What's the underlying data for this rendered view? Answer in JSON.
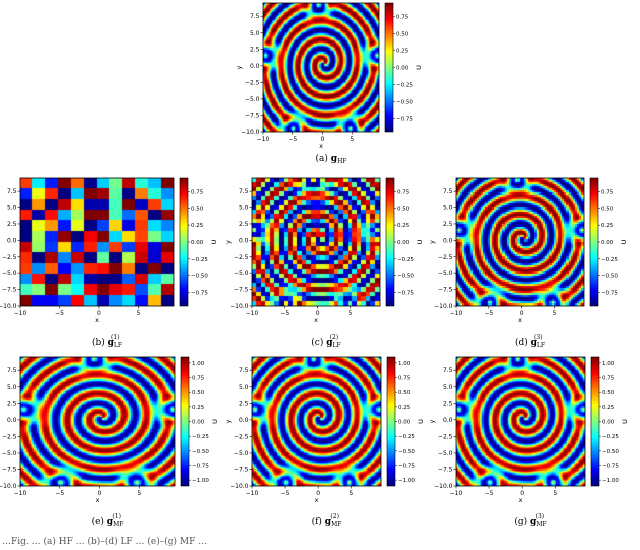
{
  "figure_footnote": "…Fig. … (a) HF … (b)–(d) LF … (e)–(g) MF …",
  "chart_data": [
    {
      "type": "heatmap",
      "panel": "a",
      "caption": "(a)",
      "caption_math": "g",
      "caption_sub": "HF",
      "caption_sup": "",
      "xlabel": "x",
      "ylabel": "y",
      "colorbar_label": "U",
      "xlim": [
        -10,
        9.5
      ],
      "ylim": [
        -10,
        9.5
      ],
      "xticks": [
        -10,
        -5,
        0,
        5
      ],
      "yticks": [
        -10.0,
        -7.5,
        -5.0,
        -2.5,
        0.0,
        2.5,
        5.0,
        7.5
      ],
      "ytick_labels": [
        "−10.0",
        "−7.5",
        "−5.0",
        "−2.5",
        "0.0",
        "2.5",
        "5.0",
        "7.5"
      ],
      "clim": [
        -0.95,
        0.95
      ],
      "colorbar_ticks": [
        0.75,
        0.5,
        0.25,
        0.0,
        -0.25,
        -0.5,
        -0.75
      ],
      "colorbar_tick_labels": [
        "0.75",
        "0.50",
        "0.25",
        "0.00",
        "−0.25",
        "−0.50",
        "−0.75"
      ],
      "colormap": "jet",
      "grid_resolution": 96,
      "field": "two-armed spiral wave centred near (0, 0) with corner spirals",
      "spiral_arms": 2,
      "max_value": 0.95,
      "min_value": -0.95
    },
    {
      "type": "heatmap",
      "panel": "b",
      "caption": "(b)",
      "caption_math": "g",
      "caption_sub": "LF",
      "caption_sup": "(1)",
      "xlabel": "x",
      "ylabel": "y",
      "colorbar_label": "U",
      "xlim": [
        -10,
        9.5
      ],
      "ylim": [
        -10,
        9.5
      ],
      "xticks": [
        -10,
        -5,
        0,
        5
      ],
      "yticks": [
        -10.0,
        -7.5,
        -5.0,
        -2.5,
        0.0,
        2.5,
        5.0,
        7.5
      ],
      "ytick_labels": [
        "−10.0",
        "−7.5",
        "−5.0",
        "−2.5",
        "0.0",
        "2.5",
        "5.0",
        "7.5"
      ],
      "clim": [
        -0.95,
        0.95
      ],
      "colorbar_ticks": [
        0.75,
        0.5,
        0.25,
        0.0,
        -0.25,
        -0.5,
        -0.75
      ],
      "colorbar_tick_labels": [
        "0.75",
        "0.50",
        "0.25",
        "0.00",
        "−0.25",
        "−0.50",
        "−0.75"
      ],
      "colormap": "jet",
      "grid_resolution": 12,
      "field": "coarse low-fidelity spiral wave",
      "spiral_arms": 2,
      "max_value": 0.95,
      "min_value": -0.95
    },
    {
      "type": "heatmap",
      "panel": "c",
      "caption": "(c)",
      "caption_math": "g",
      "caption_sub": "LF",
      "caption_sup": "(2)",
      "xlabel": "x",
      "ylabel": "y",
      "colorbar_label": "U",
      "xlim": [
        -10,
        9.5
      ],
      "ylim": [
        -10,
        9.5
      ],
      "xticks": [
        -10,
        -5,
        0,
        5
      ],
      "yticks": [
        -10.0,
        -7.5,
        -5.0,
        -2.5,
        0.0,
        2.5,
        5.0,
        7.5
      ],
      "ytick_labels": [
        "−10.0",
        "−7.5",
        "−5.0",
        "−2.5",
        "0.0",
        "2.5",
        "5.0",
        "7.5"
      ],
      "clim": [
        -0.95,
        0.95
      ],
      "colorbar_ticks": [
        0.75,
        0.5,
        0.25,
        0.0,
        -0.25,
        -0.5,
        -0.75
      ],
      "colorbar_tick_labels": [
        "0.75",
        "0.50",
        "0.25",
        "0.00",
        "−0.25",
        "−0.50",
        "−0.75"
      ],
      "colormap": "jet",
      "grid_resolution": 28,
      "field": "medium-resolution low-fidelity spiral wave",
      "spiral_arms": 2,
      "max_value": 0.95,
      "min_value": -0.95
    },
    {
      "type": "heatmap",
      "panel": "d",
      "caption": "(d)",
      "caption_math": "g",
      "caption_sub": "LF",
      "caption_sup": "(3)",
      "xlabel": "x",
      "ylabel": "y",
      "colorbar_label": "U",
      "xlim": [
        -10,
        9.5
      ],
      "ylim": [
        -10,
        9.5
      ],
      "xticks": [
        -10,
        -5,
        0,
        5
      ],
      "yticks": [
        -10.0,
        -7.5,
        -5.0,
        -2.5,
        0.0,
        2.5,
        5.0,
        7.5
      ],
      "ytick_labels": [
        "−10.0",
        "−7.5",
        "−5.0",
        "−2.5",
        "0.0",
        "2.5",
        "5.0",
        "7.5"
      ],
      "clim": [
        -0.95,
        0.95
      ],
      "colorbar_ticks": [
        0.75,
        0.5,
        0.25,
        0.0,
        -0.25,
        -0.5,
        -0.75
      ],
      "colorbar_tick_labels": [
        "0.75",
        "0.50",
        "0.25",
        "0.00",
        "−0.25",
        "−0.50",
        "−0.75"
      ],
      "colormap": "jet",
      "grid_resolution": 60,
      "field": "higher-resolution low-fidelity spiral wave",
      "spiral_arms": 2,
      "max_value": 0.95,
      "min_value": -0.95
    },
    {
      "type": "heatmap",
      "panel": "e",
      "caption": "(e)",
      "caption_math": "g",
      "caption_sub": "MF",
      "caption_sup": "(1)",
      "xlabel": "x",
      "ylabel": "y",
      "colorbar_label": "U",
      "xlim": [
        -10,
        9.5
      ],
      "ylim": [
        -10,
        9.5
      ],
      "xticks": [
        -10,
        -5,
        0,
        5
      ],
      "yticks": [
        -10.0,
        -7.5,
        -5.0,
        -2.5,
        0.0,
        2.5,
        5.0,
        7.5
      ],
      "ytick_labels": [
        "−10.0",
        "−7.5",
        "−5.0",
        "−2.5",
        "0.0",
        "2.5",
        "5.0",
        "7.5"
      ],
      "clim": [
        -1.1,
        1.1
      ],
      "colorbar_ticks": [
        1.0,
        0.75,
        0.5,
        0.25,
        0.0,
        -0.25,
        -0.5,
        -0.75,
        -1.0
      ],
      "colorbar_tick_labels": [
        "1.00",
        "0.75",
        "0.50",
        "0.25",
        "0.00",
        "−0.25",
        "−0.50",
        "−0.75",
        "−1.00"
      ],
      "colormap": "jet",
      "grid_resolution": 96,
      "field": "multi-fidelity reconstructed spiral wave",
      "spiral_arms": 2,
      "max_value": 1.05,
      "min_value": -1.05
    },
    {
      "type": "heatmap",
      "panel": "f",
      "caption": "(f)",
      "caption_math": "g",
      "caption_sub": "MF",
      "caption_sup": "(2)",
      "xlabel": "x",
      "ylabel": "y",
      "colorbar_label": "U",
      "xlim": [
        -10,
        9.5
      ],
      "ylim": [
        -10,
        9.5
      ],
      "xticks": [
        -10,
        -5,
        0,
        5
      ],
      "yticks": [
        -10.0,
        -7.5,
        -5.0,
        -2.5,
        0.0,
        2.5,
        5.0,
        7.5
      ],
      "ytick_labels": [
        "−10.0",
        "−7.5",
        "−5.0",
        "−2.5",
        "0.0",
        "2.5",
        "5.0",
        "7.5"
      ],
      "clim": [
        -1.1,
        1.1
      ],
      "colorbar_ticks": [
        1.0,
        0.75,
        0.5,
        0.25,
        0.0,
        -0.25,
        -0.5,
        -0.75,
        -1.0
      ],
      "colorbar_tick_labels": [
        "1.00",
        "0.75",
        "0.50",
        "0.25",
        "0.00",
        "−0.25",
        "−0.50",
        "−0.75",
        "−1.00"
      ],
      "colormap": "jet",
      "grid_resolution": 96,
      "field": "multi-fidelity reconstructed spiral wave",
      "spiral_arms": 2,
      "max_value": 1.05,
      "min_value": -1.05
    },
    {
      "type": "heatmap",
      "panel": "g",
      "caption": "(g)",
      "caption_math": "g",
      "caption_sub": "MF",
      "caption_sup": "(3)",
      "xlabel": "x",
      "ylabel": "y",
      "colorbar_label": "U",
      "xlim": [
        -10,
        9.5
      ],
      "ylim": [
        -10,
        9.5
      ],
      "xticks": [
        -10,
        -5,
        0,
        5
      ],
      "yticks": [
        -10.0,
        -7.5,
        -5.0,
        -2.5,
        0.0,
        2.5,
        5.0,
        7.5
      ],
      "ytick_labels": [
        "−10.0",
        "−7.5",
        "−5.0",
        "−2.5",
        "0.0",
        "2.5",
        "5.0",
        "7.5"
      ],
      "clim": [
        -1.1,
        1.1
      ],
      "colorbar_ticks": [
        1.0,
        0.75,
        0.5,
        0.25,
        0.0,
        -0.25,
        -0.5,
        -0.75,
        -1.0
      ],
      "colorbar_tick_labels": [
        "1.00",
        "0.75",
        "0.50",
        "0.25",
        "0.00",
        "−0.25",
        "−0.50",
        "−0.75",
        "−1.00"
      ],
      "colormap": "jet",
      "grid_resolution": 96,
      "field": "multi-fidelity reconstructed spiral wave",
      "spiral_arms": 2,
      "max_value": 1.05,
      "min_value": -1.05
    }
  ]
}
